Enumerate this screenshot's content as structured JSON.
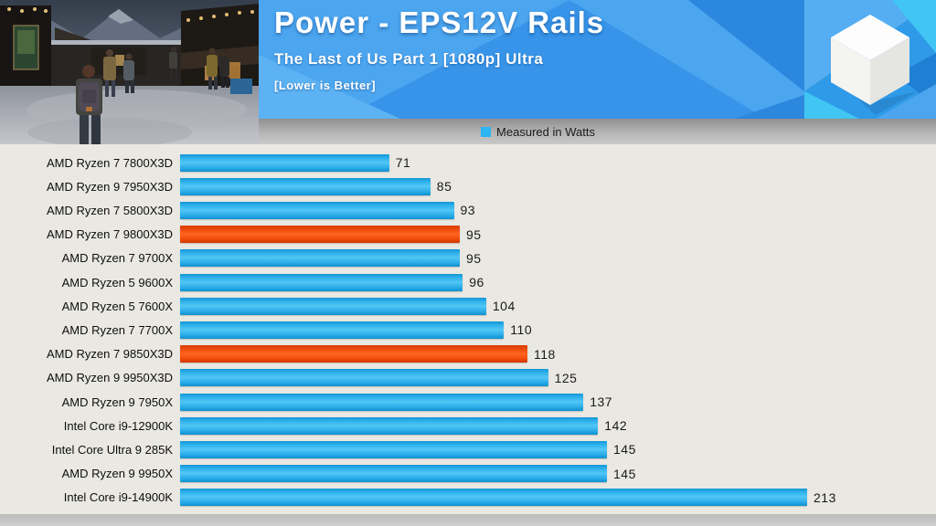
{
  "header": {
    "title": "Power - EPS12V Rails",
    "subtitle": "The Last of Us Part 1 [1080p] Ultra",
    "note": "[Lower is Better]"
  },
  "legend": {
    "label": "Measured in Watts",
    "swatch_color": "#2cb5f2"
  },
  "colors": {
    "banner_blue": "#3794e9",
    "bar_blue": "#29abe2",
    "bar_highlight_orange": "#f4490b",
    "chart_background": "#e9e8e2"
  },
  "chart_data": {
    "type": "bar",
    "orientation": "horizontal",
    "title": "Power - EPS12V Rails",
    "subtitle": "The Last of Us Part 1 [1080p] Ultra",
    "note": "Lower is Better",
    "unit": "Watts",
    "legend": [
      "Measured in Watts"
    ],
    "legend_position": "top-center",
    "grid": false,
    "value_axis_max": 213,
    "categories": [
      "AMD Ryzen 7 7800X3D",
      "AMD Ryzen 9 7950X3D",
      "AMD Ryzen 7 5800X3D",
      "AMD Ryzen 7 9800X3D",
      "AMD Ryzen 7 9700X",
      "AMD Ryzen 5 9600X",
      "AMD Ryzen 5 7600X",
      "AMD Ryzen 7 7700X",
      "AMD Ryzen 7 9850X3D",
      "AMD Ryzen 9 9950X3D",
      "AMD Ryzen 9 7950X",
      "Intel Core i9-12900K",
      "Intel Core Ultra 9 285K",
      "AMD Ryzen 9 9950X",
      "Intel Core i9-14900K"
    ],
    "values": [
      71,
      85,
      93,
      95,
      95,
      96,
      104,
      110,
      118,
      125,
      137,
      142,
      145,
      145,
      213
    ],
    "highlighted_indexes": [
      3,
      8
    ],
    "highlight_meaning": "orange bars"
  }
}
